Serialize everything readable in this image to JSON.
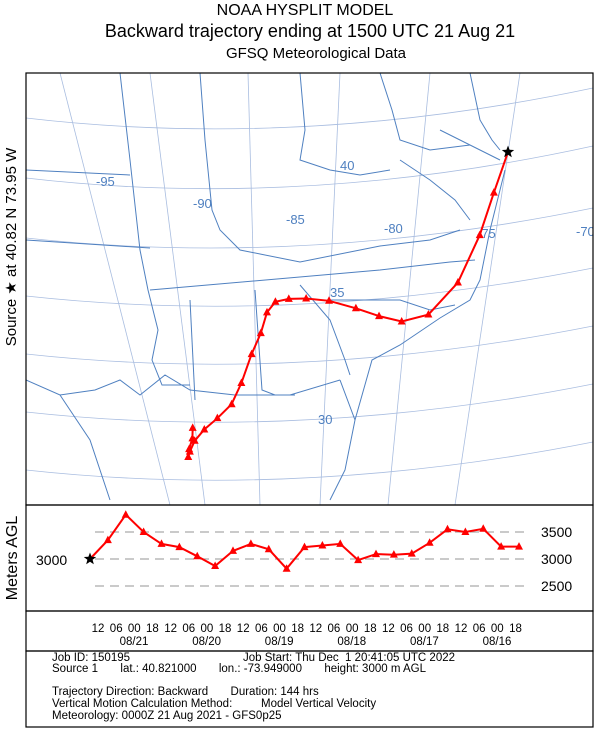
{
  "header": {
    "line1": "NOAA HYSPLIT MODEL",
    "line2": "Backward trajectory ending at 1500 UTC 21 Aug 21",
    "line3": "GFSQ Meteorological Data"
  },
  "map": {
    "side_label": "Source ★ at   40.82 N   73.95 W",
    "source_marker": "star",
    "grid_labels": {
      "lon": [
        "-95",
        "-90",
        "-85",
        "-80",
        "-75",
        "-70"
      ],
      "lat": [
        "40",
        "35",
        "30"
      ]
    },
    "colors": {
      "trajectory": "#ff0000",
      "grid": "#4f80c0",
      "frame": "#000000"
    }
  },
  "height_panel": {
    "ylabel": "Meters AGL",
    "source_height_label": "3000",
    "ref_lines": [
      "3500",
      "3000",
      "2500"
    ]
  },
  "time_axis": {
    "hour_labels": [
      "12",
      "06",
      "00",
      "18",
      "12",
      "06",
      "00",
      "18",
      "12",
      "06",
      "00",
      "18",
      "12",
      "06",
      "00",
      "18",
      "12",
      "06",
      "00",
      "18",
      "12",
      "06",
      "00",
      "18"
    ],
    "date_labels": [
      "08/21",
      "08/20",
      "08/19",
      "08/18",
      "08/17",
      "08/16"
    ]
  },
  "info": {
    "job_id": "Job ID: 150195",
    "job_start": "Job Start: Thu Dec  1 20:41:05 UTC 2022",
    "source": "Source 1       lat.: 40.821000       lon.: -73.949000       height: 3000 m AGL",
    "direction": "Trajectory Direction: Backward       Duration: 144 hrs",
    "vertical": "Vertical Motion Calculation Method:         Model Vertical Velocity",
    "meteorology": "Meteorology: 0000Z 21 Aug 2021 - GFS0p25"
  },
  "chart_data": {
    "type": "line",
    "title": "Backward trajectory ending at 1500 UTC 21 Aug 21",
    "ylabel": "Meters AGL",
    "xlabel": "",
    "ylim": [
      2000,
      3900
    ],
    "x_unit": "hours before 1500 UTC 21 Aug 2021",
    "series": [
      {
        "hours_back": [
          0,
          6,
          12,
          18,
          24,
          30,
          36,
          42,
          48,
          54,
          60,
          66,
          72,
          78,
          84,
          90,
          96,
          102,
          108,
          114,
          120,
          126,
          132,
          138,
          144
        ],
        "lat": [
          40.82,
          39.2,
          37.5,
          35.6,
          34.3,
          34.0,
          34.2,
          34.5,
          34.8,
          34.9,
          34.9,
          34.8,
          34.4,
          33.6,
          32.8,
          31.7,
          30.9,
          30.4,
          30.0,
          29.6,
          29.2,
          29.0,
          29.3,
          29.7,
          30.1
        ],
        "lon": [
          -73.95,
          -74.7,
          -75.5,
          -76.8,
          -78.6,
          -80.2,
          -81.5,
          -82.8,
          -84.3,
          -85.6,
          -86.6,
          -87.4,
          -88.0,
          -88.6,
          -89.4,
          -90.4,
          -91.3,
          -92.4,
          -93.4,
          -94.2,
          -94.7,
          -94.9,
          -94.7,
          -94.3,
          -94.1
        ]
      },
      {
        "name": "Meters AGL",
        "hours_back": [
          0,
          6,
          12,
          18,
          24,
          30,
          36,
          42,
          48,
          54,
          60,
          66,
          72,
          78,
          84,
          90,
          96,
          102,
          108,
          114,
          120,
          126,
          132,
          138,
          144
        ],
        "values": [
          3000,
          3350,
          3820,
          3500,
          3280,
          3220,
          3050,
          2870,
          3150,
          3280,
          3180,
          2820,
          3220,
          3250,
          3280,
          2980,
          3090,
          3080,
          3100,
          3300,
          3550,
          3500,
          3560,
          3230,
          3230
        ]
      }
    ]
  }
}
